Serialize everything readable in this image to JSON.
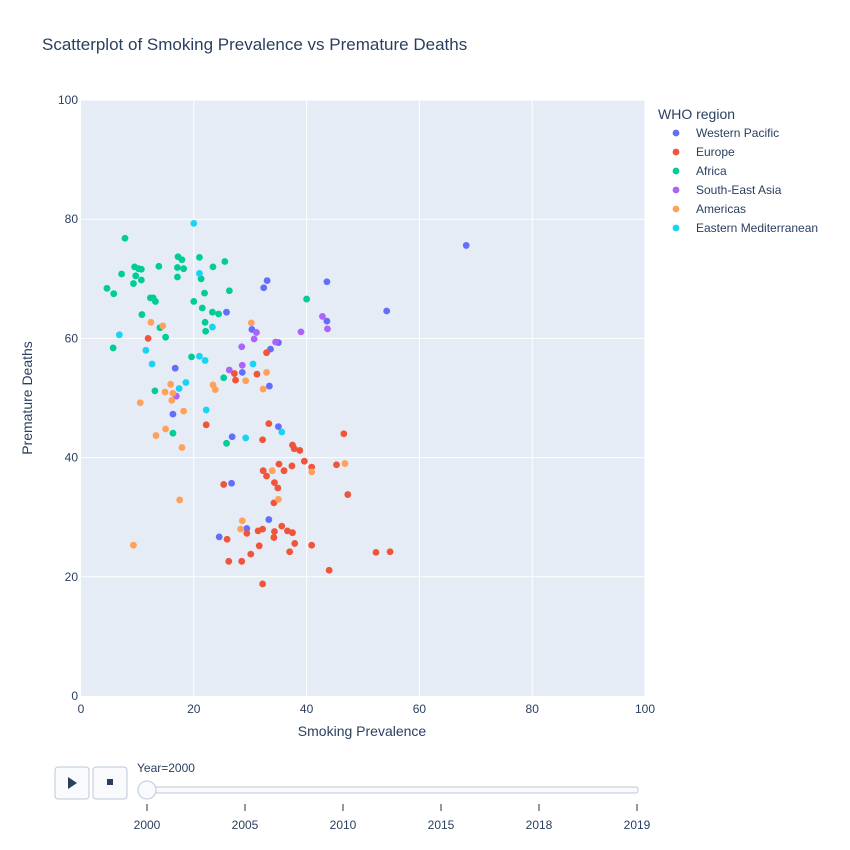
{
  "chart_data": {
    "type": "scatter",
    "title": "Scatterplot of Smoking Prevalence vs Premature Deaths",
    "xlabel": "Smoking Prevalence",
    "ylabel": "Premature Deaths",
    "xlim": [
      0,
      100
    ],
    "ylim": [
      0,
      100
    ],
    "xticks": [
      0,
      20,
      40,
      60,
      80,
      100
    ],
    "yticks": [
      0,
      20,
      40,
      60,
      80,
      100
    ],
    "grid": true,
    "legend": {
      "title": "WHO region",
      "placement": "right"
    },
    "series": [
      {
        "name": "Western Pacific",
        "color": "#636efa",
        "points": [
          [
            68.3,
            75.6
          ],
          [
            54.2,
            64.6
          ],
          [
            43.6,
            69.5
          ],
          [
            43.6,
            62.9
          ],
          [
            33.0,
            69.7
          ],
          [
            32.4,
            68.5
          ],
          [
            30.3,
            61.5
          ],
          [
            35.0,
            59.3
          ],
          [
            33.6,
            58.2
          ],
          [
            25.8,
            64.4
          ],
          [
            16.7,
            55.0
          ],
          [
            33.4,
            52.0
          ],
          [
            16.3,
            47.3
          ],
          [
            35.0,
            45.2
          ],
          [
            26.8,
            43.5
          ],
          [
            29.4,
            28.1
          ],
          [
            33.3,
            29.6
          ],
          [
            26.7,
            35.7
          ],
          [
            24.5,
            26.7
          ],
          [
            28.6,
            54.3
          ]
        ]
      },
      {
        "name": "Europe",
        "color": "#ef553b",
        "points": [
          [
            11.9,
            60.0
          ],
          [
            22.2,
            45.5
          ],
          [
            27.2,
            54.1
          ],
          [
            27.4,
            53.0
          ],
          [
            31.2,
            54.0
          ],
          [
            32.9,
            57.6
          ],
          [
            33.3,
            45.7
          ],
          [
            46.6,
            44.0
          ],
          [
            32.2,
            43.0
          ],
          [
            37.5,
            42.1
          ],
          [
            37.8,
            41.5
          ],
          [
            38.8,
            41.2
          ],
          [
            32.3,
            37.8
          ],
          [
            32.9,
            36.9
          ],
          [
            35.1,
            38.9
          ],
          [
            37.4,
            38.6
          ],
          [
            39.6,
            39.4
          ],
          [
            40.9,
            38.4
          ],
          [
            45.3,
            38.8
          ],
          [
            47.3,
            33.8
          ],
          [
            25.3,
            35.5
          ],
          [
            34.3,
            35.8
          ],
          [
            34.9,
            34.9
          ],
          [
            34.2,
            32.4
          ],
          [
            36.0,
            37.8
          ],
          [
            35.6,
            28.5
          ],
          [
            36.6,
            27.7
          ],
          [
            37.5,
            27.4
          ],
          [
            34.3,
            27.6
          ],
          [
            34.2,
            26.6
          ],
          [
            32.2,
            28.0
          ],
          [
            31.4,
            27.7
          ],
          [
            29.4,
            27.3
          ],
          [
            25.9,
            26.3
          ],
          [
            37.9,
            25.6
          ],
          [
            40.9,
            25.3
          ],
          [
            31.6,
            25.2
          ],
          [
            30.1,
            23.8
          ],
          [
            26.2,
            22.6
          ],
          [
            28.5,
            22.6
          ],
          [
            37.0,
            24.2
          ],
          [
            52.3,
            24.1
          ],
          [
            54.8,
            24.2
          ],
          [
            44.0,
            21.1
          ],
          [
            32.2,
            18.8
          ]
        ]
      },
      {
        "name": "Africa",
        "color": "#00cc96",
        "points": [
          [
            4.6,
            68.4
          ],
          [
            5.8,
            67.5
          ],
          [
            7.2,
            70.8
          ],
          [
            7.8,
            76.8
          ],
          [
            9.5,
            72.0
          ],
          [
            9.7,
            70.5
          ],
          [
            10.2,
            71.7
          ],
          [
            10.7,
            71.6
          ],
          [
            9.3,
            69.2
          ],
          [
            10.7,
            69.8
          ],
          [
            13.8,
            72.1
          ],
          [
            17.1,
            71.9
          ],
          [
            17.2,
            73.7
          ],
          [
            17.9,
            73.2
          ],
          [
            18.2,
            71.7
          ],
          [
            17.1,
            70.3
          ],
          [
            21.0,
            73.6
          ],
          [
            25.5,
            72.9
          ],
          [
            23.4,
            72.0
          ],
          [
            21.3,
            70.0
          ],
          [
            21.9,
            67.6
          ],
          [
            26.3,
            68.0
          ],
          [
            20.0,
            66.2
          ],
          [
            21.5,
            65.1
          ],
          [
            12.3,
            66.8
          ],
          [
            12.8,
            66.8
          ],
          [
            13.2,
            66.2
          ],
          [
            23.3,
            64.4
          ],
          [
            24.4,
            64.1
          ],
          [
            10.8,
            64.0
          ],
          [
            22.0,
            62.7
          ],
          [
            22.1,
            61.2
          ],
          [
            14.0,
            61.8
          ],
          [
            15.0,
            60.2
          ],
          [
            5.7,
            58.4
          ],
          [
            19.6,
            56.9
          ],
          [
            13.1,
            51.2
          ],
          [
            25.3,
            53.4
          ],
          [
            16.3,
            44.1
          ],
          [
            25.8,
            42.4
          ],
          [
            40.0,
            66.6
          ]
        ]
      },
      {
        "name": "South-East Asia",
        "color": "#ab63fa",
        "points": [
          [
            42.8,
            63.7
          ],
          [
            43.7,
            61.6
          ],
          [
            39.0,
            61.1
          ],
          [
            31.1,
            61.0
          ],
          [
            30.7,
            59.9
          ],
          [
            28.5,
            58.6
          ],
          [
            34.5,
            59.4
          ],
          [
            28.6,
            55.5
          ],
          [
            26.3,
            54.7
          ],
          [
            16.9,
            50.3
          ]
        ]
      },
      {
        "name": "Americas",
        "color": "#ffa15a",
        "points": [
          [
            12.4,
            62.7
          ],
          [
            14.5,
            62.1
          ],
          [
            30.2,
            62.6
          ],
          [
            15.9,
            52.3
          ],
          [
            23.4,
            52.2
          ],
          [
            23.8,
            51.4
          ],
          [
            14.9,
            51.0
          ],
          [
            16.3,
            50.8
          ],
          [
            16.1,
            49.6
          ],
          [
            10.5,
            49.2
          ],
          [
            32.3,
            51.5
          ],
          [
            32.9,
            54.3
          ],
          [
            29.2,
            52.9
          ],
          [
            18.2,
            47.8
          ],
          [
            15.0,
            44.8
          ],
          [
            13.3,
            43.7
          ],
          [
            17.9,
            41.7
          ],
          [
            17.5,
            32.9
          ],
          [
            33.9,
            37.8
          ],
          [
            40.9,
            37.6
          ],
          [
            46.8,
            39.0
          ],
          [
            35.0,
            33.0
          ],
          [
            28.6,
            29.4
          ],
          [
            28.3,
            28.0
          ],
          [
            9.3,
            25.3
          ]
        ]
      },
      {
        "name": "Eastern Mediterranean",
        "color": "#19d3f3",
        "points": [
          [
            20.0,
            79.3
          ],
          [
            21.0,
            70.9
          ],
          [
            6.8,
            60.6
          ],
          [
            11.5,
            58.0
          ],
          [
            21.0,
            57.0
          ],
          [
            22.0,
            56.3
          ],
          [
            12.6,
            55.7
          ],
          [
            23.3,
            61.9
          ],
          [
            30.5,
            55.7
          ],
          [
            18.6,
            52.6
          ],
          [
            17.4,
            51.6
          ],
          [
            22.2,
            48.0
          ],
          [
            29.2,
            43.3
          ],
          [
            35.6,
            44.3
          ]
        ]
      }
    ]
  },
  "controls": {
    "play_icon": "play-icon",
    "stop_icon": "stop-icon",
    "current_label": "Year=2000",
    "slider_ticks": [
      "2000",
      "2005",
      "2010",
      "2015",
      "2018",
      "2019"
    ],
    "slider_value": "2000"
  }
}
